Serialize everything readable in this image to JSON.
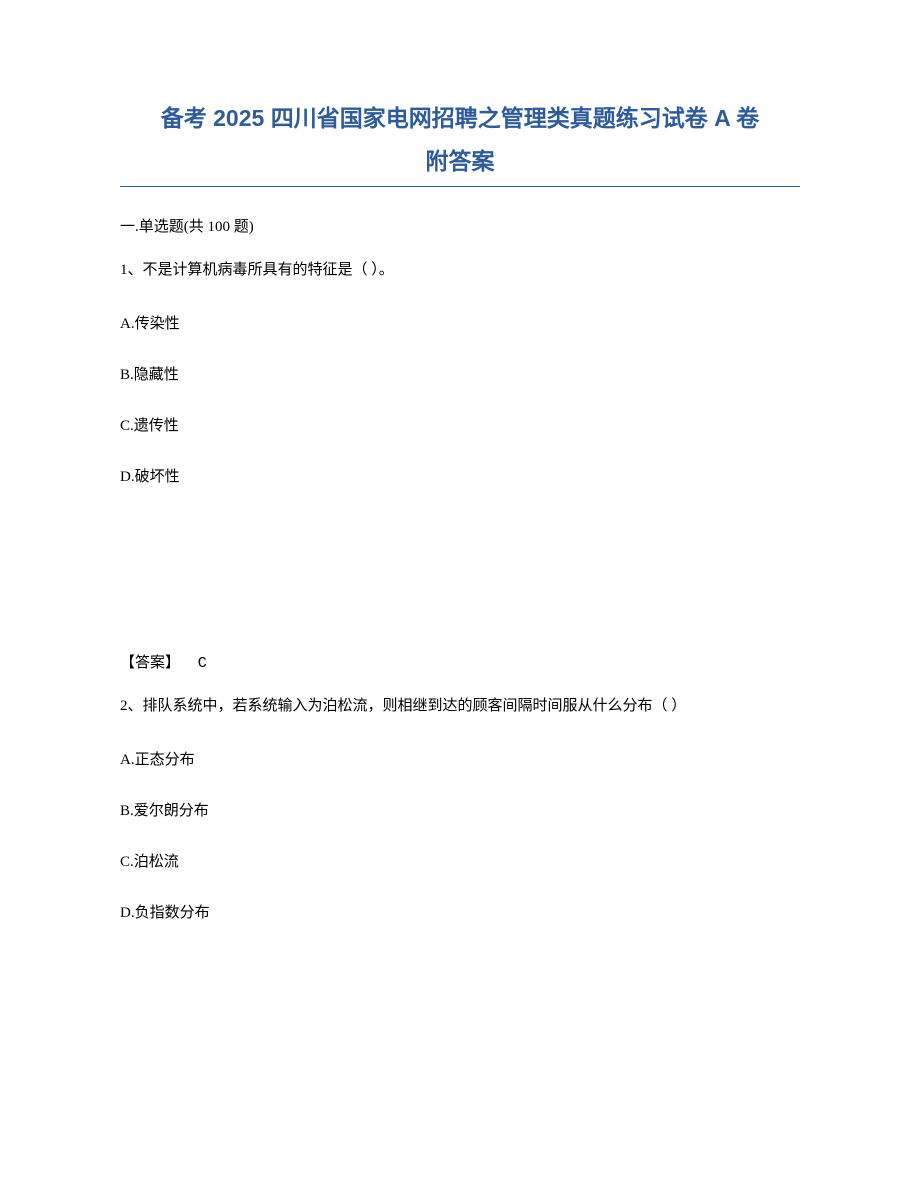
{
  "document": {
    "title_line1": "备考 2025 四川省国家电网招聘之管理类真题练习试卷 A 卷",
    "title_line2": "附答案",
    "title_color": "#2e5c9a",
    "title_fontsize": 23,
    "underline_color": "#2e5c9a",
    "background_color": "#ffffff",
    "body_text_color": "#000000",
    "body_fontsize": 15
  },
  "section": {
    "header": "一.单选题(共 100 题)"
  },
  "questions": [
    {
      "number": "1",
      "text": "1、不是计算机病毒所具有的特征是（ ）。",
      "options": {
        "A": "A.传染性",
        "B": "B.隐藏性",
        "C": "C.遗传性",
        "D": "D.破坏性"
      },
      "answer_label": "【答案】",
      "answer_value": "C"
    },
    {
      "number": "2",
      "text": "2、排队系统中，若系统输入为泊松流，则相继到达的顾客间隔时间服从什么分布（ ）",
      "options": {
        "A": "A.正态分布",
        "B": "B.爱尔朗分布",
        "C": "C.泊松流",
        "D": "D.负指数分布"
      }
    }
  ]
}
